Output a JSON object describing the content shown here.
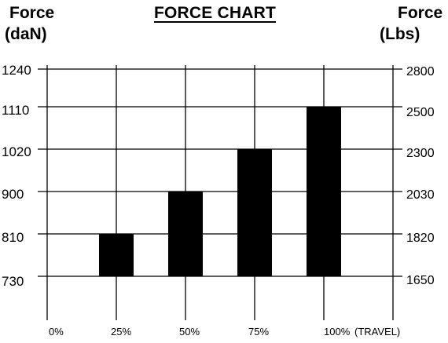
{
  "header": {
    "left_title_line1": "Force",
    "left_title_line2": "(daN)",
    "right_title_line1": "Force",
    "right_title_line2": "(Lbs)",
    "title": "FORCE CHART"
  },
  "chart_data": {
    "type": "bar",
    "title": "FORCE CHART",
    "ylabel_left": "Force (daN)",
    "ylabel_right": "Force (Lbs)",
    "xlabel": "(TRAVEL)",
    "x_ticks": [
      "0%",
      "25%",
      "50%",
      "75%",
      "100%"
    ],
    "left_ticks": [
      "1240",
      "1110",
      "1020",
      "900",
      "810",
      "730"
    ],
    "right_ticks": [
      "2800",
      "2500",
      "2300",
      "2030",
      "1820",
      "1650"
    ],
    "bars": [
      {
        "travel": "25%",
        "low": 730,
        "high": 810
      },
      {
        "travel": "50%",
        "low": 730,
        "high": 900
      },
      {
        "travel": "75%",
        "low": 730,
        "high": 1020
      },
      {
        "travel": "100%",
        "low": 730,
        "high": 1110
      }
    ],
    "grid": true,
    "bar_color": "#000000"
  }
}
